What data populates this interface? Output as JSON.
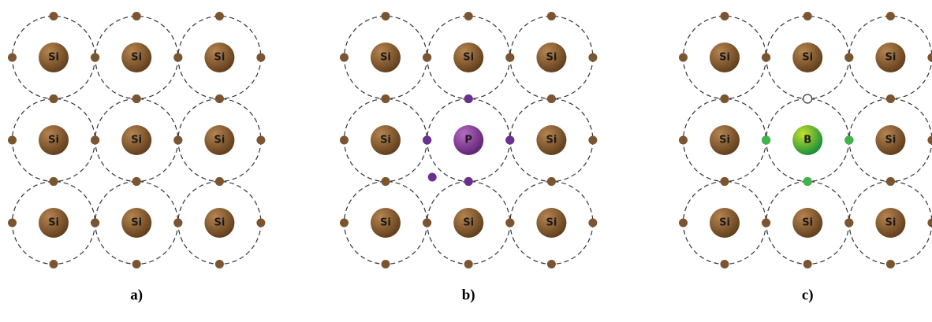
{
  "panels": [
    {
      "caption": "a)",
      "atoms": [
        [
          "Si",
          "Si",
          "Si"
        ],
        [
          "Si",
          "Si",
          "Si"
        ],
        [
          "Si",
          "Si",
          "Si"
        ]
      ]
    },
    {
      "caption": "b)",
      "atoms": [
        [
          "Si",
          "Si",
          "Si"
        ],
        [
          "Si",
          "P",
          "Si"
        ],
        [
          "Si",
          "Si",
          "Si"
        ]
      ]
    },
    {
      "caption": "c)",
      "atoms": [
        [
          "Si",
          "Si",
          "Si"
        ],
        [
          "Si",
          "B",
          "Si"
        ],
        [
          "Si",
          "Si",
          "Si"
        ]
      ]
    }
  ]
}
